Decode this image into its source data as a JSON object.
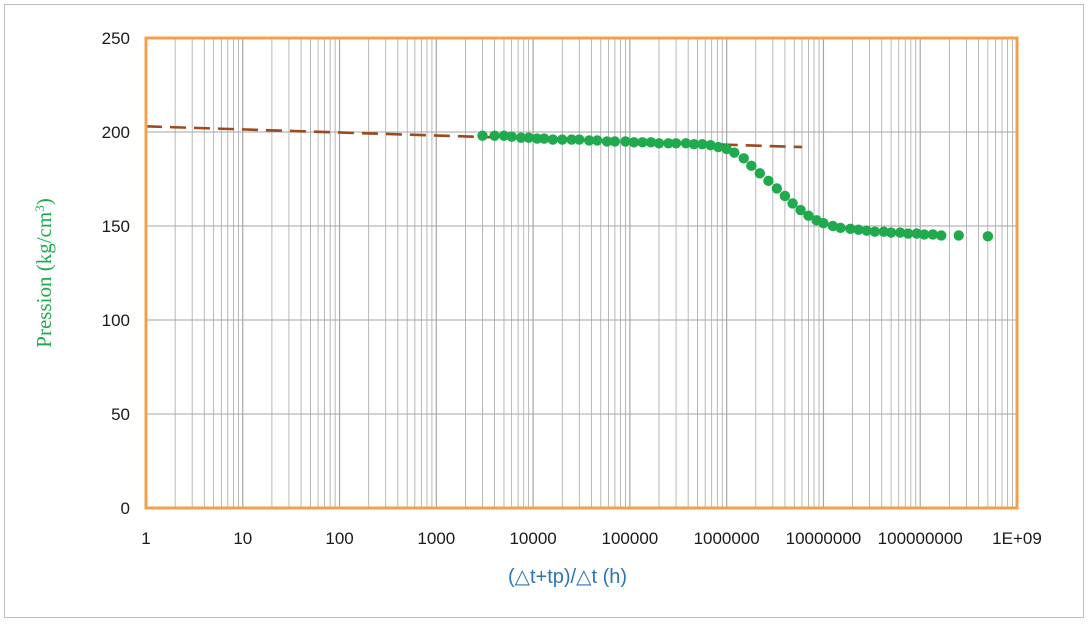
{
  "chart_data": {
    "type": "scatter",
    "xlabel": "(△t+tp)/△t (h)",
    "ylabel": "Pression (kg/cm",
    "ylabel_sup": "3",
    "ylabel_close": ")",
    "x_scale": "log",
    "xlim": [
      1,
      1000000000
    ],
    "ylim": [
      0,
      250
    ],
    "y_ticks": [
      0,
      50,
      100,
      150,
      200,
      250
    ],
    "y_tick_labels": [
      "0",
      "50",
      "100",
      "150",
      "200",
      "250"
    ],
    "x_ticks": [
      1,
      10,
      100,
      1000,
      10000,
      100000,
      1000000,
      10000000,
      100000000,
      1000000000
    ],
    "x_tick_labels": [
      "1",
      "10",
      "100",
      "1000",
      "10000",
      "100000",
      "1000000",
      "10000000",
      "100000000",
      "1E+09"
    ],
    "grid": true,
    "colors": {
      "points": "#1faa4e",
      "trend": "#9a4a1c",
      "frame": "#f4a04a",
      "grid": "#a6a6a6",
      "xlabel": "#2e74b5",
      "ylabel": "#1faa4e"
    },
    "series": [
      {
        "kind": "points",
        "x": [
          3000,
          4000,
          5000,
          6000,
          7500,
          9000,
          11000,
          13000,
          16000,
          20000,
          25000,
          30000,
          38000,
          46000,
          58000,
          70000,
          90000,
          110000,
          135000,
          165000,
          200000,
          250000,
          300000,
          380000,
          460000,
          560000,
          680000,
          820000,
          1000000,
          1200000,
          1500000,
          1800000,
          2200000,
          2700000,
          3300000,
          4000000,
          4800000,
          5800000,
          7000000,
          8500000,
          10000000,
          12500000,
          15000000,
          19000000,
          23000000,
          28000000,
          34000000,
          42000000,
          50000000,
          62000000,
          75000000,
          92000000,
          110000000,
          135000000,
          165000000,
          250000000,
          500000000
        ],
        "y": [
          198,
          198,
          198,
          197.5,
          197,
          197,
          196.5,
          196.5,
          196,
          196,
          196,
          196,
          195.5,
          195.5,
          195,
          195,
          195,
          194.5,
          194.5,
          194.5,
          194,
          194,
          194,
          194,
          193.5,
          193.5,
          193,
          192,
          191,
          189,
          186,
          182,
          178,
          174,
          170,
          166,
          162,
          158.5,
          155.5,
          153,
          151.5,
          150,
          149,
          148.5,
          148,
          147.5,
          147,
          147,
          146.5,
          146.5,
          146,
          146,
          145.5,
          145.5,
          145,
          145,
          144.5
        ]
      },
      {
        "kind": "trend",
        "x": [
          1,
          6000000
        ],
        "y": [
          203,
          192
        ]
      }
    ]
  }
}
